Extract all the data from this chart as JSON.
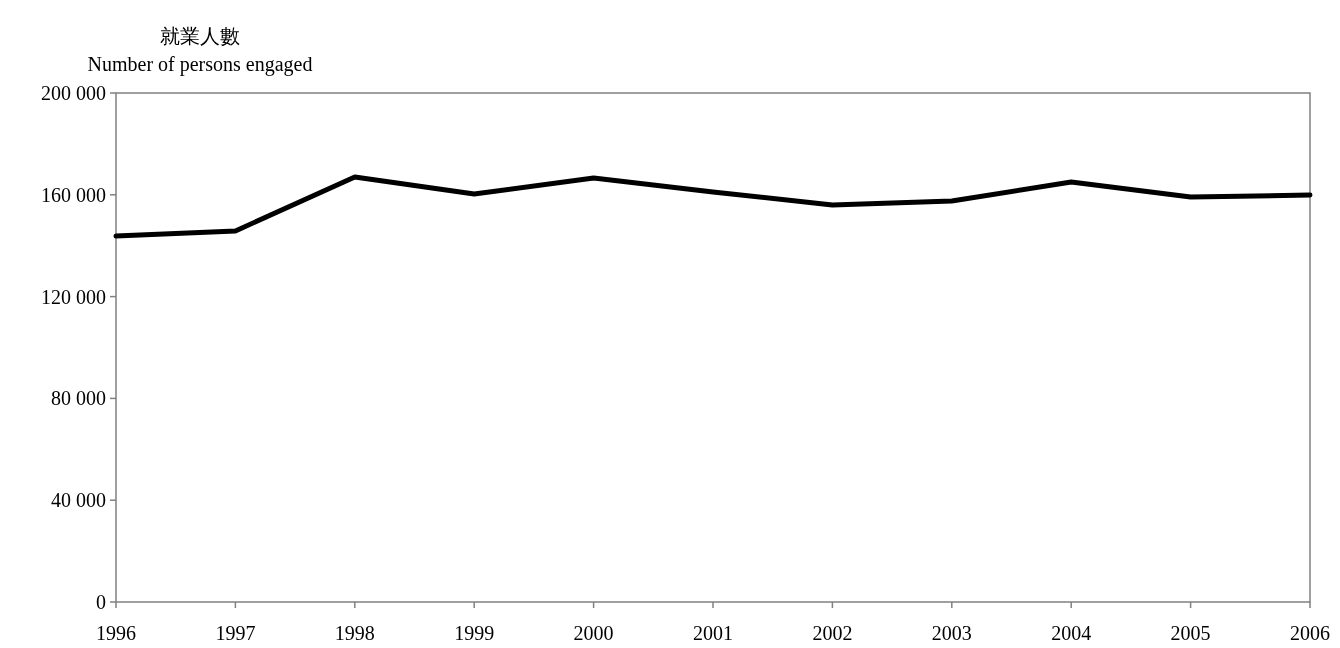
{
  "chart_data": {
    "type": "line",
    "ylabel": "就業人數\nNumber of persons engaged",
    "x": [
      1996,
      1997,
      1998,
      1999,
      2000,
      2001,
      2002,
      2003,
      2004,
      2005,
      2006
    ],
    "series": [
      {
        "color": "#000000",
        "values": [
          143800,
          145800,
          167000,
          160300,
          166600,
          161100,
          156000,
          157600,
          165000,
          159100,
          159900
        ]
      }
    ],
    "xlim": [
      1996,
      2006
    ],
    "xticks": [
      1996,
      1997,
      1998,
      1999,
      2000,
      2001,
      2002,
      2003,
      2004,
      2005,
      2006
    ],
    "ylim": [
      0,
      200000
    ],
    "yticks": [
      0,
      {
        "value": 40000,
        "label": "40 000"
      },
      {
        "value": 80000,
        "label": "80 000"
      },
      {
        "value": 120000,
        "label": "120 000"
      },
      {
        "value": 160000,
        "label": "160 000"
      },
      {
        "value": 200000,
        "label": "200 000"
      }
    ],
    "grid": false,
    "marker": "none",
    "line_style": "solid"
  }
}
